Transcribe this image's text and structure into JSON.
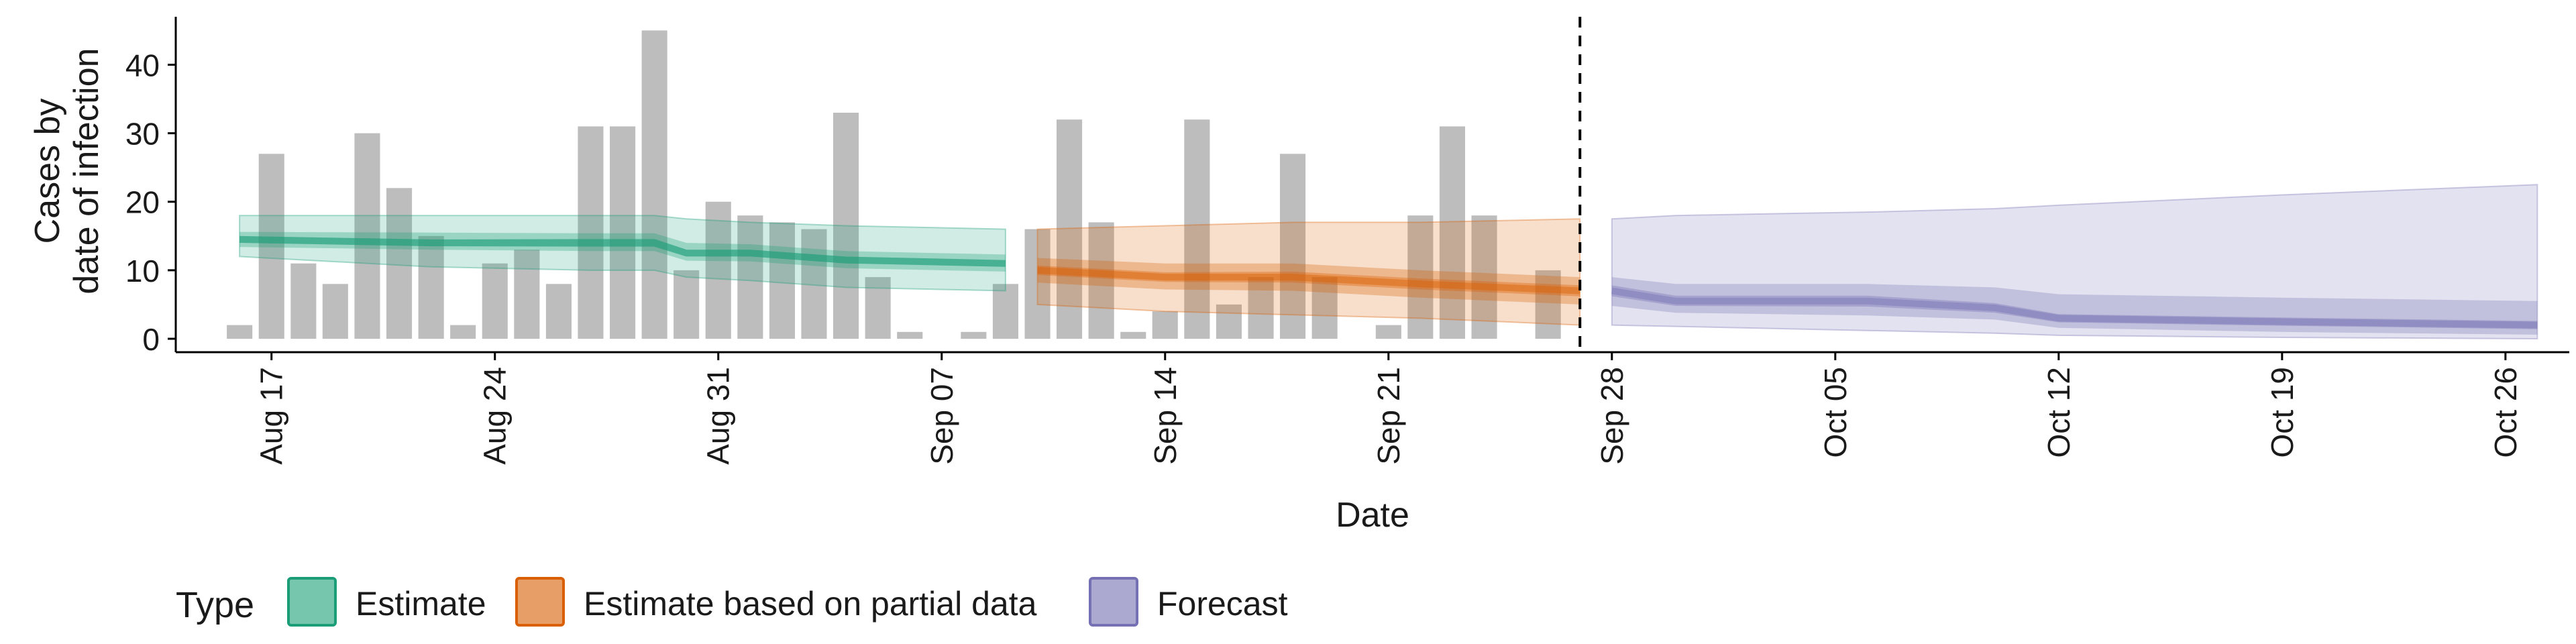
{
  "chart_data": {
    "type": "bar",
    "xlabel": "Date",
    "ylabel_lines": [
      "Cases by",
      "date of infection"
    ],
    "ylim": [
      0,
      47
    ],
    "yticks": [
      0,
      10,
      20,
      30,
      40
    ],
    "x_start": "2020-08-14",
    "x_end": "2020-10-28",
    "date_ticks": [
      {
        "date": "2020-08-17",
        "label": "Aug 17"
      },
      {
        "date": "2020-08-24",
        "label": "Aug 24"
      },
      {
        "date": "2020-08-31",
        "label": "Aug 31"
      },
      {
        "date": "2020-09-07",
        "label": "Sep 07"
      },
      {
        "date": "2020-09-14",
        "label": "Sep 14"
      },
      {
        "date": "2020-09-21",
        "label": "Sep 21"
      },
      {
        "date": "2020-09-28",
        "label": "Sep 28"
      },
      {
        "date": "2020-10-05",
        "label": "Oct 05"
      },
      {
        "date": "2020-10-12",
        "label": "Oct 12"
      },
      {
        "date": "2020-10-19",
        "label": "Oct 19"
      },
      {
        "date": "2020-10-26",
        "label": "Oct 26"
      }
    ],
    "reported_cases": {
      "start_date": "2020-08-16",
      "values": [
        2,
        27,
        11,
        8,
        30,
        22,
        15,
        2,
        11,
        13,
        8,
        31,
        31,
        45,
        10,
        20,
        18,
        17,
        16,
        33,
        9,
        1,
        0,
        1,
        8,
        16,
        32,
        17,
        1,
        4,
        32,
        5,
        9,
        27,
        9,
        0,
        2,
        18,
        31,
        18,
        0,
        10
      ]
    },
    "forecast_divider_date": "2020-09-27",
    "series": [
      {
        "name": "Estimate",
        "color": "#1b9e77",
        "bands": [
          {
            "date": "2020-08-16",
            "median": 14.5,
            "lower90": 12,
            "upper90": 18,
            "lower50": 13.4,
            "upper50": 15.6,
            "lower20": 14,
            "upper20": 15
          },
          {
            "date": "2020-08-22",
            "median": 14,
            "lower90": 10.5,
            "upper90": 18,
            "lower50": 13,
            "upper50": 15.5,
            "lower20": 13.5,
            "upper20": 14.5
          },
          {
            "date": "2020-08-27",
            "median": 14,
            "lower90": 10,
            "upper90": 18,
            "lower50": 12.8,
            "upper50": 15.4,
            "lower20": 13.4,
            "upper20": 14.6
          },
          {
            "date": "2020-08-29",
            "median": 14,
            "lower90": 10,
            "upper90": 18,
            "lower50": 12.8,
            "upper50": 15.4,
            "lower20": 13.4,
            "upper20": 14.6
          },
          {
            "date": "2020-08-30",
            "median": 12.5,
            "lower90": 9,
            "upper90": 17.5,
            "lower50": 11.4,
            "upper50": 14,
            "lower20": 12,
            "upper20": 13
          },
          {
            "date": "2020-09-01",
            "median": 12.5,
            "lower90": 8.5,
            "upper90": 17,
            "lower50": 11.3,
            "upper50": 13.8,
            "lower20": 12,
            "upper20": 13
          },
          {
            "date": "2020-09-04",
            "median": 11.5,
            "lower90": 7.5,
            "upper90": 16.5,
            "lower50": 10.3,
            "upper50": 12.8,
            "lower20": 11,
            "upper20": 12
          },
          {
            "date": "2020-09-09",
            "median": 11,
            "lower90": 7,
            "upper90": 16,
            "lower50": 9.8,
            "upper50": 12.3,
            "lower20": 10.5,
            "upper20": 11.5
          }
        ]
      },
      {
        "name": "Estimate based on partial data",
        "color": "#d95f02",
        "bands": [
          {
            "date": "2020-09-10",
            "median": 10,
            "lower90": 5,
            "upper90": 16,
            "lower50": 8.2,
            "upper50": 11.8,
            "lower20": 9.3,
            "upper20": 10.7
          },
          {
            "date": "2020-09-14",
            "median": 9,
            "lower90": 4,
            "upper90": 16.5,
            "lower50": 7.2,
            "upper50": 11,
            "lower20": 8.3,
            "upper20": 9.7
          },
          {
            "date": "2020-09-18",
            "median": 9,
            "lower90": 3.5,
            "upper90": 17,
            "lower50": 7,
            "upper50": 11,
            "lower20": 8.2,
            "upper20": 9.8
          },
          {
            "date": "2020-09-22",
            "median": 8,
            "lower90": 3,
            "upper90": 17,
            "lower50": 6,
            "upper50": 10,
            "lower20": 7.2,
            "upper20": 8.8
          },
          {
            "date": "2020-09-27",
            "median": 7,
            "lower90": 2,
            "upper90": 17.5,
            "lower50": 5,
            "upper50": 9,
            "lower20": 6.2,
            "upper20": 7.8
          }
        ]
      },
      {
        "name": "Forecast",
        "color": "#7570b3",
        "bands": [
          {
            "date": "2020-09-28",
            "median": 7,
            "lower90": 2,
            "upper90": 17.5,
            "lower50": 4.8,
            "upper50": 9,
            "lower20": 6.2,
            "upper20": 7.8
          },
          {
            "date": "2020-09-30",
            "median": 5.5,
            "lower90": 1.8,
            "upper90": 18,
            "lower50": 3.8,
            "upper50": 8,
            "lower20": 4.8,
            "upper20": 6.3
          },
          {
            "date": "2020-10-06",
            "median": 5.5,
            "lower90": 1.2,
            "upper90": 18.5,
            "lower50": 3.4,
            "upper50": 8,
            "lower20": 4.7,
            "upper20": 6.3
          },
          {
            "date": "2020-10-10",
            "median": 4.5,
            "lower90": 0.8,
            "upper90": 19,
            "lower50": 2.8,
            "upper50": 7.5,
            "lower20": 3.8,
            "upper20": 5.2
          },
          {
            "date": "2020-10-12",
            "median": 3,
            "lower90": 0.5,
            "upper90": 19.5,
            "lower50": 1.6,
            "upper50": 6.5,
            "lower20": 2.4,
            "upper20": 3.6
          },
          {
            "date": "2020-10-19",
            "median": 2.5,
            "lower90": 0.2,
            "upper90": 21,
            "lower50": 1,
            "upper50": 6,
            "lower20": 1.9,
            "upper20": 3.1
          },
          {
            "date": "2020-10-27",
            "median": 2,
            "lower90": 0,
            "upper90": 22.5,
            "lower50": 0.6,
            "upper50": 5.5,
            "lower20": 1.4,
            "upper20": 2.6
          }
        ]
      }
    ],
    "legend": {
      "title": "Type",
      "position": "bottom",
      "items": [
        "Estimate",
        "Estimate based on partial data",
        "Forecast"
      ]
    },
    "bar_color": "#bdbdbd",
    "grid": false
  }
}
